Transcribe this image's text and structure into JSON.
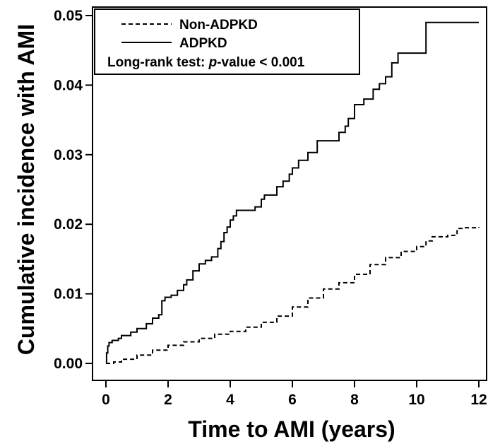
{
  "chart_data": {
    "type": "line",
    "xlabel": "Time to AMI (years)",
    "ylabel": "Cumulative incidence with AMI",
    "xlim": [
      0,
      12.2
    ],
    "ylim": [
      0,
      0.05
    ],
    "x_ticks": [
      0,
      2,
      4,
      6,
      8,
      10,
      12
    ],
    "x_tick_labels": [
      "0",
      "2",
      "4",
      "6",
      "8",
      "10",
      "12"
    ],
    "y_ticks": [
      0.0,
      0.01,
      0.02,
      0.03,
      0.04,
      0.05
    ],
    "y_tick_labels": [
      "0.00",
      "0.01",
      "0.02",
      "0.03",
      "0.04",
      "0.05"
    ],
    "grid": false,
    "legend_position": "top-left",
    "legend": {
      "entries": [
        {
          "label": "Non-ADPKD",
          "style": "dashed"
        },
        {
          "label": "ADPKD",
          "style": "solid"
        }
      ],
      "note_prefix": "Long-rank test: ",
      "note_italic": "p",
      "note_suffix": "-value < 0.001"
    },
    "series": [
      {
        "name": "Non-ADPKD",
        "style": "dashed",
        "color": "#000000",
        "step": true,
        "x": [
          0,
          0.25,
          0.5,
          1.0,
          1.5,
          2.0,
          2.5,
          3.0,
          3.5,
          4.0,
          4.5,
          5.0,
          5.5,
          6.0,
          6.5,
          7.0,
          7.5,
          8.0,
          8.5,
          9.0,
          9.5,
          10.0,
          10.3,
          10.5,
          11.0,
          11.3,
          11.5,
          12.0
        ],
        "y": [
          0,
          0.0002,
          0.0006,
          0.0012,
          0.0019,
          0.0026,
          0.0031,
          0.0036,
          0.0042,
          0.0046,
          0.0052,
          0.0059,
          0.0068,
          0.0081,
          0.0094,
          0.0107,
          0.0116,
          0.0128,
          0.0142,
          0.0152,
          0.0161,
          0.0168,
          0.0176,
          0.0182,
          0.0184,
          0.0194,
          0.0195,
          0.0196
        ]
      },
      {
        "name": "ADPKD",
        "style": "solid",
        "color": "#000000",
        "step": true,
        "x": [
          0,
          0.02,
          0.06,
          0.1,
          0.2,
          0.4,
          0.5,
          0.8,
          1.0,
          1.3,
          1.5,
          1.7,
          1.8,
          1.9,
          2.1,
          2.3,
          2.5,
          2.6,
          2.8,
          3.0,
          3.2,
          3.4,
          3.6,
          3.7,
          3.8,
          3.9,
          4.0,
          4.1,
          4.2,
          4.4,
          4.6,
          4.8,
          5.0,
          5.1,
          5.3,
          5.5,
          5.7,
          5.9,
          6.0,
          6.2,
          6.5,
          6.8,
          7.2,
          7.5,
          7.7,
          7.8,
          8.0,
          8.3,
          8.6,
          8.8,
          9.0,
          9.2,
          9.4,
          9.8,
          10.3,
          12.0
        ],
        "y": [
          0,
          0.0015,
          0.0025,
          0.003,
          0.0033,
          0.0036,
          0.004,
          0.0045,
          0.005,
          0.0057,
          0.0065,
          0.007,
          0.009,
          0.0095,
          0.0098,
          0.0105,
          0.0113,
          0.012,
          0.0133,
          0.0143,
          0.0148,
          0.0153,
          0.0165,
          0.0175,
          0.0188,
          0.0196,
          0.0206,
          0.0212,
          0.022,
          0.022,
          0.022,
          0.0225,
          0.0236,
          0.0242,
          0.0242,
          0.0254,
          0.0262,
          0.0272,
          0.0281,
          0.0292,
          0.0303,
          0.032,
          0.032,
          0.0332,
          0.0341,
          0.0352,
          0.0372,
          0.038,
          0.0394,
          0.0402,
          0.0412,
          0.0432,
          0.0446,
          0.0446,
          0.049,
          0.049
        ]
      }
    ]
  }
}
